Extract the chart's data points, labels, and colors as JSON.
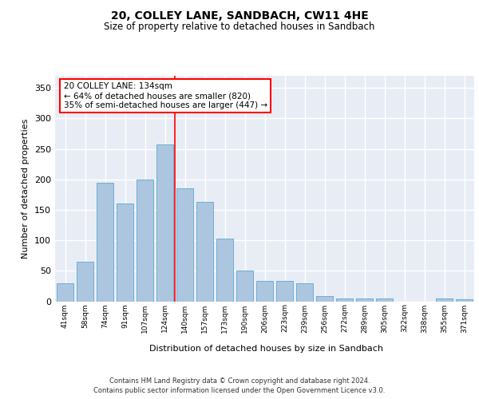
{
  "title": "20, COLLEY LANE, SANDBACH, CW11 4HE",
  "subtitle": "Size of property relative to detached houses in Sandbach",
  "xlabel": "Distribution of detached houses by size in Sandbach",
  "ylabel": "Number of detached properties",
  "categories": [
    "41sqm",
    "58sqm",
    "74sqm",
    "91sqm",
    "107sqm",
    "124sqm",
    "140sqm",
    "157sqm",
    "173sqm",
    "190sqm",
    "206sqm",
    "223sqm",
    "239sqm",
    "256sqm",
    "272sqm",
    "289sqm",
    "305sqm",
    "322sqm",
    "338sqm",
    "355sqm",
    "371sqm"
  ],
  "values": [
    30,
    65,
    195,
    160,
    200,
    257,
    185,
    163,
    103,
    50,
    33,
    33,
    30,
    9,
    5,
    5,
    5,
    0,
    0,
    5,
    3
  ],
  "bar_color": "#adc6e0",
  "bar_edgecolor": "#6aaed6",
  "vline_x_index": 5,
  "vline_color": "red",
  "annotation_text": "20 COLLEY LANE: 134sqm\n← 64% of detached houses are smaller (820)\n35% of semi-detached houses are larger (447) →",
  "annotation_box_color": "white",
  "annotation_box_edgecolor": "red",
  "ylim": [
    0,
    370
  ],
  "yticks": [
    0,
    50,
    100,
    150,
    200,
    250,
    300,
    350
  ],
  "background_color": "#e8edf5",
  "grid_color": "white",
  "footer_line1": "Contains HM Land Registry data © Crown copyright and database right 2024.",
  "footer_line2": "Contains public sector information licensed under the Open Government Licence v3.0."
}
